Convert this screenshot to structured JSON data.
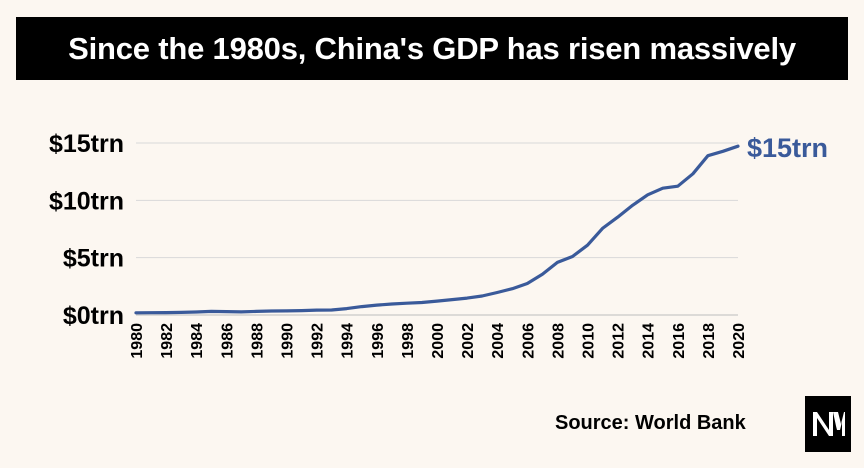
{
  "title": "Since the 1980s, China's GDP has risen massively",
  "source": "Source: World Bank",
  "logo_icon": "nm-logo-icon",
  "colors": {
    "line": "#3a5a9a",
    "grid": "#d9d9d9",
    "title_bg": "#000000",
    "background": "#fcf7f1"
  },
  "chart_data": {
    "type": "line",
    "title": "Since the 1980s, China's GDP has risen massively",
    "xlabel": "",
    "ylabel": "",
    "ylim": [
      0,
      15
    ],
    "yticks": [
      0,
      5,
      10,
      15
    ],
    "ytick_labels": [
      "$0trn",
      "$5trn",
      "$10trn",
      "$15trn"
    ],
    "grid": true,
    "end_label": "$15trn",
    "x": [
      1980,
      1981,
      1982,
      1983,
      1984,
      1985,
      1986,
      1987,
      1988,
      1989,
      1990,
      1991,
      1992,
      1993,
      1994,
      1995,
      1996,
      1997,
      1998,
      1999,
      2000,
      2001,
      2002,
      2003,
      2004,
      2005,
      2006,
      2007,
      2008,
      2009,
      2010,
      2011,
      2012,
      2013,
      2014,
      2015,
      2016,
      2017,
      2018,
      2019,
      2020
    ],
    "xtick_labels": [
      "1980",
      "1982",
      "1984",
      "1986",
      "1988",
      "1990",
      "1992",
      "1994",
      "1996",
      "1998",
      "2000",
      "2002",
      "2004",
      "2006",
      "2008",
      "2010",
      "2012",
      "2014",
      "2016",
      "2018",
      "2020"
    ],
    "series": [
      {
        "values": [
          0.19,
          0.2,
          0.21,
          0.23,
          0.26,
          0.31,
          0.3,
          0.27,
          0.31,
          0.35,
          0.36,
          0.38,
          0.43,
          0.44,
          0.56,
          0.73,
          0.86,
          0.96,
          1.03,
          1.09,
          1.21,
          1.34,
          1.47,
          1.66,
          1.96,
          2.29,
          2.75,
          3.55,
          4.59,
          5.1,
          6.09,
          7.55,
          8.53,
          9.57,
          10.48,
          11.06,
          11.23,
          12.31,
          13.89,
          14.28,
          14.72
        ]
      }
    ]
  }
}
